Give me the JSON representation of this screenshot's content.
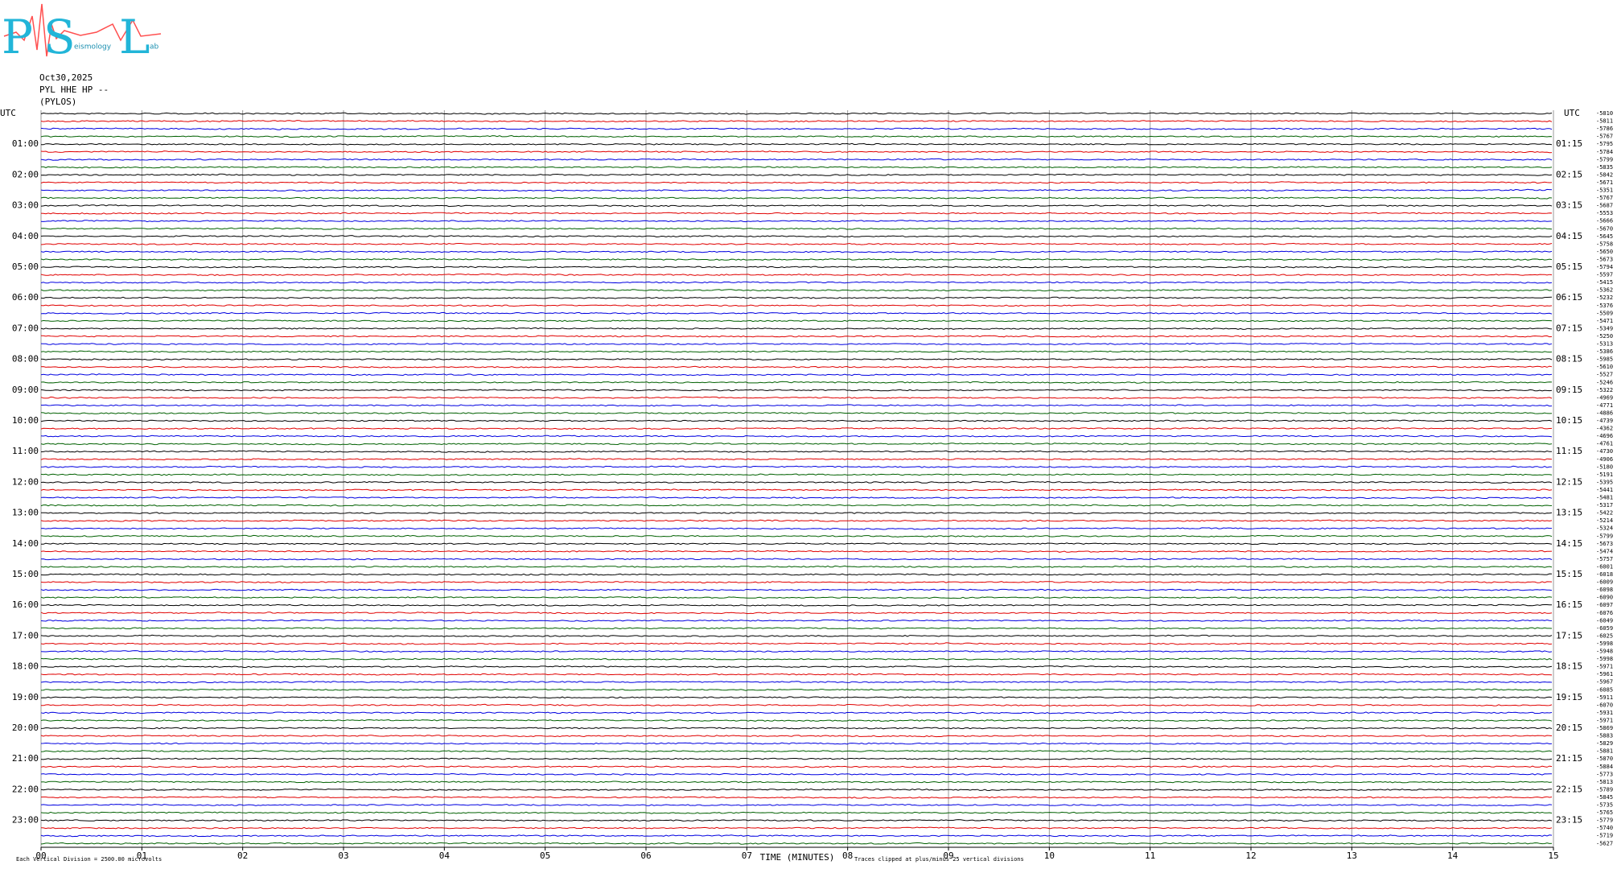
{
  "chart_data": {
    "type": "helicorder",
    "logo": {
      "letters": [
        "P",
        "S",
        "L"
      ],
      "words": [
        "eismology",
        "ab"
      ]
    },
    "date": "Oct30,2025",
    "station": "PYL HHE HP --",
    "site": "(PYLOS)",
    "left_labels": [
      "UTC",
      "01:00",
      "02:00",
      "03:00",
      "04:00",
      "05:00",
      "06:00",
      "07:00",
      "08:00",
      "09:00",
      "10:00",
      "11:00",
      "12:00",
      "13:00",
      "14:00",
      "15:00",
      "16:00",
      "17:00",
      "18:00",
      "19:00",
      "20:00",
      "21:00",
      "22:00",
      "23:00"
    ],
    "right_labels": [
      "UTC",
      "01:15",
      "02:15",
      "03:15",
      "04:15",
      "05:15",
      "06:15",
      "07:15",
      "08:15",
      "09:15",
      "10:15",
      "11:15",
      "12:15",
      "13:15",
      "14:15",
      "15:15",
      "16:15",
      "17:15",
      "18:15",
      "19:15",
      "20:15",
      "21:15",
      "22:15",
      "23:15"
    ],
    "trace_colors": [
      "#000000",
      "#e00000",
      "#0000e0",
      "#006000"
    ],
    "offsets": [
      -5810,
      -5811,
      -5786,
      -5767,
      -5795,
      -5784,
      -5799,
      -5835,
      -5842,
      -5671,
      -5351,
      -5767,
      -5687,
      -5553,
      -5666,
      -5670,
      -5645,
      -5758,
      -5650,
      -5673,
      -5794,
      -5597,
      -5415,
      -5362,
      -5232,
      -5376,
      -5509,
      -5471,
      -5349,
      -5250,
      -5313,
      -5386,
      -5985,
      -5610,
      -5527,
      -5246,
      -5322,
      -4969,
      -4771,
      -4886,
      -4739,
      -4362,
      -4696,
      -4761,
      -4730,
      -4906,
      -5180,
      -5191,
      -5395,
      -5441,
      -5481,
      -5317,
      -5422,
      -5214,
      -5324,
      -5799,
      -5673,
      -5474,
      -5757,
      -6001,
      -6018,
      -6009,
      -6098,
      -6090,
      -6097,
      -6076,
      -6049,
      -6059,
      -6025,
      -5998,
      -5948,
      -5998,
      -5971,
      -5961,
      -5967,
      -6085,
      -5911,
      -6070,
      -5931,
      -5971,
      -5869,
      -5883,
      -5829,
      -5881,
      -5870,
      -5884,
      -5773,
      -5813,
      -5789,
      -5845,
      -5735,
      -5765,
      -5779,
      -5740,
      -5719,
      -5627
    ],
    "xlim": [
      0,
      15
    ],
    "xticks": [
      {
        "value": 0,
        "label": "00"
      },
      {
        "value": 1,
        "label": "01"
      },
      {
        "value": 2,
        "label": "02"
      },
      {
        "value": 3,
        "label": "03"
      },
      {
        "value": 4,
        "label": "04"
      },
      {
        "value": 5,
        "label": "05"
      },
      {
        "value": 6,
        "label": "06"
      },
      {
        "value": 7,
        "label": "07"
      },
      {
        "value": 8,
        "label": "08"
      },
      {
        "value": 9,
        "label": "09"
      },
      {
        "value": 10,
        "label": "10"
      },
      {
        "value": 11,
        "label": "11"
      },
      {
        "value": 12,
        "label": "12"
      },
      {
        "value": 13,
        "label": "13"
      },
      {
        "value": 14,
        "label": "14"
      },
      {
        "value": 15,
        "label": "15"
      }
    ],
    "xlabel": "TIME (MINUTES)",
    "scale_note": "Each Vertical Division = 2500.00 microvolts",
    "clip_note": "Traces clipped at plus/minus 25 vertical divisions",
    "grid": true
  }
}
